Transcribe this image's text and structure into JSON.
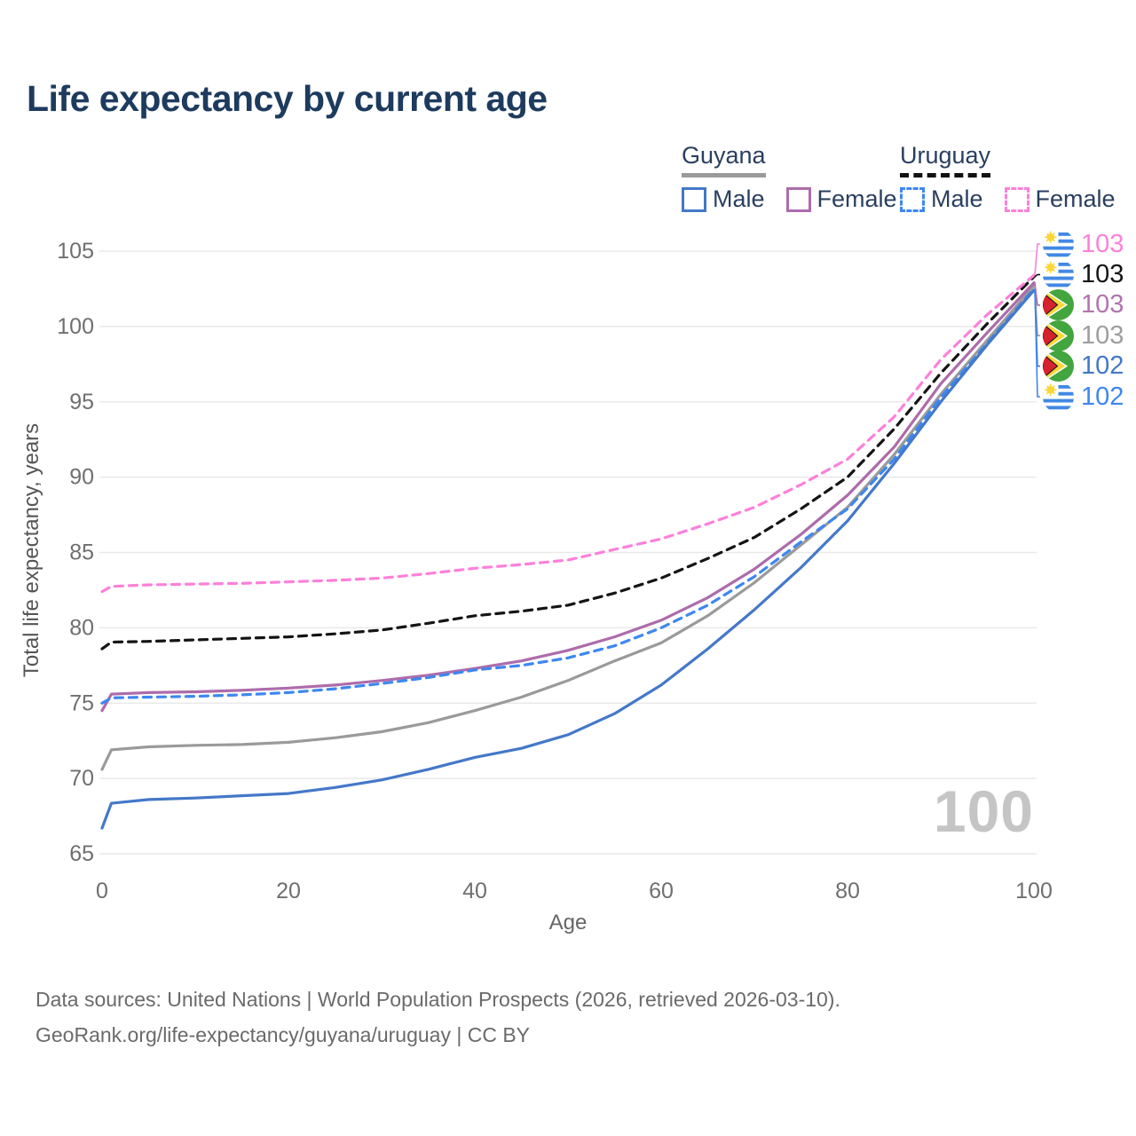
{
  "header": {
    "title": "Life expectancy by current age"
  },
  "legend": {
    "groups": [
      {
        "name": "Guyana",
        "line_color": "#9a9a9a",
        "line_style": "solid",
        "items": [
          {
            "label": "Male",
            "color": "#4478c8",
            "dashed": false
          },
          {
            "label": "Female",
            "color": "#ad6cab",
            "dashed": false
          }
        ]
      },
      {
        "name": "Uruguay",
        "line_color": "#111111",
        "line_style": "dashed",
        "items": [
          {
            "label": "Male",
            "color": "#3d87f0",
            "dashed": true
          },
          {
            "label": "Female",
            "color": "#fc80da",
            "dashed": true
          }
        ]
      }
    ]
  },
  "chart_data": {
    "type": "line",
    "title": "Life expectancy by current age",
    "xlabel": "Age",
    "ylabel": "Total life expectancy, years",
    "xlim": [
      0,
      100
    ],
    "ylim": [
      65,
      105
    ],
    "xticks": [
      0,
      20,
      40,
      60,
      80,
      100
    ],
    "yticks": [
      65,
      70,
      75,
      80,
      85,
      90,
      95,
      100,
      105
    ],
    "grid": "horizontal-only",
    "legend_position": "top-right",
    "watermark": "100",
    "x": [
      0,
      1,
      5,
      10,
      15,
      20,
      25,
      30,
      35,
      40,
      45,
      50,
      55,
      60,
      65,
      70,
      75,
      80,
      85,
      90,
      95,
      100
    ],
    "series": [
      {
        "id": "guyana_total",
        "name": "Guyana — Both sexes",
        "color": "#9a9a9a",
        "dashed": false,
        "values": [
          70.6,
          71.9,
          72.1,
          72.2,
          72.25,
          72.4,
          72.7,
          73.1,
          73.7,
          74.5,
          75.4,
          76.5,
          77.8,
          79.0,
          80.8,
          83.0,
          85.5,
          88.0,
          91.5,
          95.5,
          99.1,
          102.7
        ]
      },
      {
        "id": "guyana_female",
        "name": "Guyana — Female",
        "color": "#ad6cab",
        "dashed": false,
        "values": [
          74.5,
          75.6,
          75.7,
          75.75,
          75.85,
          76.0,
          76.2,
          76.5,
          76.85,
          77.3,
          77.8,
          78.5,
          79.4,
          80.5,
          82.0,
          83.9,
          86.2,
          88.8,
          92.0,
          96.2,
          99.6,
          102.9
        ]
      },
      {
        "id": "uruguay_male",
        "name": "Uruguay — Male",
        "color": "#3d87f0",
        "dashed": true,
        "values": [
          75.0,
          75.35,
          75.4,
          75.45,
          75.55,
          75.7,
          75.95,
          76.3,
          76.7,
          77.2,
          77.5,
          78.0,
          78.8,
          80.0,
          81.5,
          83.4,
          85.7,
          87.9,
          91.2,
          95.3,
          98.9,
          102.5
        ]
      },
      {
        "id": "guyana_male",
        "name": "Guyana — Male",
        "color": "#4478c8",
        "dashed": false,
        "values": [
          66.7,
          68.35,
          68.6,
          68.7,
          68.85,
          69.0,
          69.4,
          69.9,
          70.6,
          71.4,
          72.0,
          72.9,
          74.3,
          76.2,
          78.6,
          81.2,
          84.0,
          87.1,
          90.9,
          95.0,
          98.8,
          102.4
        ]
      },
      {
        "id": "uruguay_total",
        "name": "Uruguay — Both sexes",
        "color": "#141414",
        "dashed": true,
        "values": [
          78.6,
          79.05,
          79.1,
          79.2,
          79.3,
          79.4,
          79.6,
          79.85,
          80.3,
          80.8,
          81.1,
          81.5,
          82.3,
          83.3,
          84.6,
          86.0,
          87.9,
          90.0,
          93.2,
          96.9,
          100.2,
          103.3
        ]
      },
      {
        "id": "uruguay_female",
        "name": "Uruguay — Female",
        "color": "#fc80da",
        "dashed": true,
        "values": [
          82.4,
          82.75,
          82.85,
          82.9,
          82.95,
          83.05,
          83.15,
          83.3,
          83.6,
          83.95,
          84.2,
          84.5,
          85.2,
          85.9,
          86.9,
          88.0,
          89.5,
          91.2,
          94.0,
          97.8,
          100.8,
          103.4
        ]
      }
    ],
    "end_labels": [
      {
        "series": "uruguay_female",
        "flag": "uruguay",
        "value": "103",
        "color": "#fc80da"
      },
      {
        "series": "uruguay_total",
        "flag": "uruguay",
        "value": "103",
        "color": "#141414"
      },
      {
        "series": "guyana_female",
        "flag": "guyana",
        "value": "103",
        "color": "#b273ae"
      },
      {
        "series": "guyana_total",
        "flag": "guyana",
        "value": "103",
        "color": "#9e9e9e"
      },
      {
        "series": "guyana_male",
        "flag": "guyana",
        "value": "102",
        "color": "#4478c8"
      },
      {
        "series": "uruguay_male",
        "flag": "uruguay",
        "value": "102",
        "color": "#3d87f0"
      }
    ]
  },
  "footer": {
    "line1": "Data sources: United Nations | World Population Prospects (2026, retrieved 2026-03-10).",
    "line2": "GeoRank.org/life-expectancy/guyana/uruguay | CC BY"
  }
}
